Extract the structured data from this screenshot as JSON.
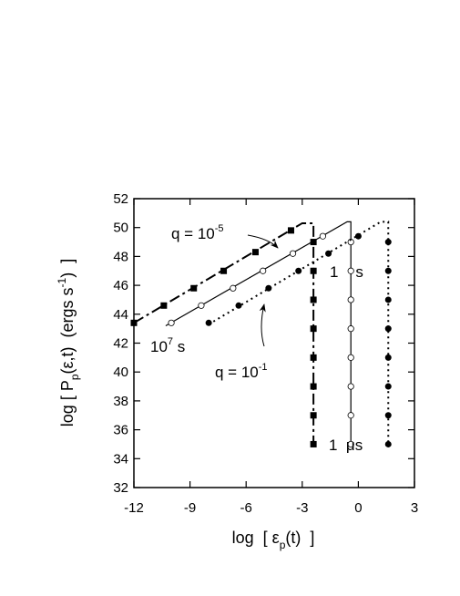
{
  "chart_data": {
    "type": "line",
    "xlabel": {
      "main": "log  [ ε",
      "sub": "p",
      "end": "(t)  ]"
    },
    "ylabel": {
      "main": "log [ P",
      "sub": "p",
      "mid": "(ε,t)  (ergs s",
      "sup": "-1",
      "end": ")  ]"
    },
    "xlim": [
      -12,
      3
    ],
    "xticks": [
      -12,
      -9,
      -6,
      -3,
      0,
      3
    ],
    "ylim": [
      32,
      52
    ],
    "yticks": [
      32,
      34,
      36,
      38,
      40,
      42,
      44,
      46,
      48,
      50,
      52
    ],
    "annotations": {
      "q_low": {
        "text": "q = 10",
        "sup": "-5"
      },
      "q_high": {
        "text": "q = 10",
        "sup": "-1"
      },
      "t_long": {
        "text": "10",
        "sup": "7",
        "end": " s"
      },
      "t_one": "1    s",
      "t_micro": "1  μs"
    },
    "series": [
      {
        "style": "dashdot",
        "marker": "square",
        "color": "#000",
        "x": [
          -12,
          -3,
          -2.4,
          -2.4
        ],
        "values": [
          43.4,
          50.3,
          50.3,
          35
        ],
        "markers": {
          "x": [
            -12,
            -10.4,
            -8.8,
            -7.2,
            -5.5,
            -3.6,
            -2.4,
            -2.4,
            -2.4,
            -2.4,
            -2.4,
            -2.4,
            -2.4,
            -2.4
          ],
          "values": [
            43.4,
            44.6,
            45.8,
            47.0,
            48.3,
            49.8,
            49,
            47,
            45,
            43,
            41,
            39,
            37,
            35
          ]
        }
      },
      {
        "style": "solid",
        "marker": "open-circle",
        "color": "#000",
        "x": [
          -10.3,
          -0.6,
          -0.4,
          -0.4
        ],
        "values": [
          43.2,
          50.4,
          50.4,
          35
        ],
        "markers": {
          "x": [
            -10,
            -8.4,
            -6.7,
            -5.1,
            -3.5,
            -1.9,
            -0.4,
            -0.4,
            -0.4,
            -0.4,
            -0.4,
            -0.4,
            -0.4,
            -0.4
          ],
          "values": [
            43.4,
            44.6,
            45.8,
            47.0,
            48.2,
            49.4,
            49,
            47,
            45,
            43,
            41,
            39,
            37,
            35
          ]
        }
      },
      {
        "style": "dotted",
        "marker": "filled-circle",
        "color": "#000",
        "x": [
          -8,
          1.2,
          1.6,
          1.6
        ],
        "values": [
          43.3,
          50.4,
          50.4,
          35
        ],
        "markers": {
          "x": [
            -8,
            -6.4,
            -4.8,
            -3.2,
            -1.6,
            0,
            1.6,
            1.6,
            1.6,
            1.6,
            1.6,
            1.6,
            1.6,
            1.6
          ],
          "values": [
            43.4,
            44.6,
            45.8,
            47.0,
            48.2,
            49.4,
            49,
            47,
            45,
            43,
            41,
            39,
            37,
            35
          ]
        }
      }
    ]
  }
}
